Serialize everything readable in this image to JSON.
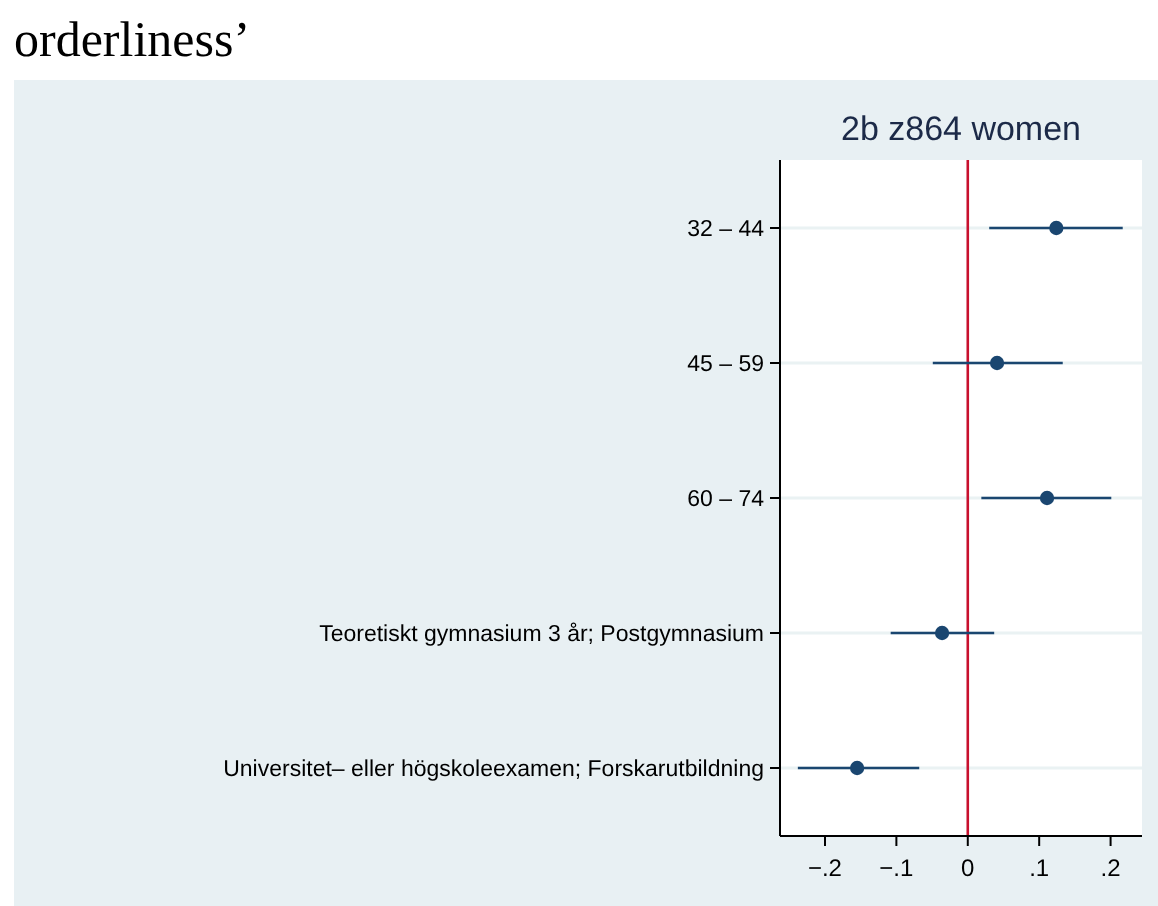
{
  "chart_data": {
    "type": "scatter",
    "orientation": "horizontal",
    "title": "2b z864 women",
    "annotations": [
      "orderliness’"
    ],
    "categories": [
      "32 – 44",
      "45 – 59",
      "60 – 74",
      "Teoretiskt gymnasium 3 år; Postgymnasium",
      "Universitet– eller högskoleexamen; Forskarutbildning"
    ],
    "series": [
      {
        "color": "#1a4670",
        "values": [
          0.124,
          0.041,
          0.111,
          -0.036,
          -0.155
        ],
        "errors": [
          [
            0.03,
            0.217
          ],
          [
            -0.049,
            0.133
          ],
          [
            0.019,
            0.201
          ],
          [
            -0.108,
            0.037
          ],
          [
            -0.238,
            -0.068
          ]
        ]
      }
    ],
    "xlim": [
      -0.263,
      0.244
    ],
    "xticks": [
      {
        "value": -0.2,
        "label": "−.2"
      },
      {
        "value": -0.1,
        "label": "−.1"
      },
      {
        "value": 0,
        "label": "0"
      },
      {
        "value": 0.1,
        "label": ".1"
      },
      {
        "value": 0.2,
        "label": ".2"
      }
    ],
    "ref_lines": [
      {
        "axis": "x",
        "value": 0,
        "color": "#c8102e"
      }
    ],
    "grid": "y",
    "marker": "circle"
  }
}
